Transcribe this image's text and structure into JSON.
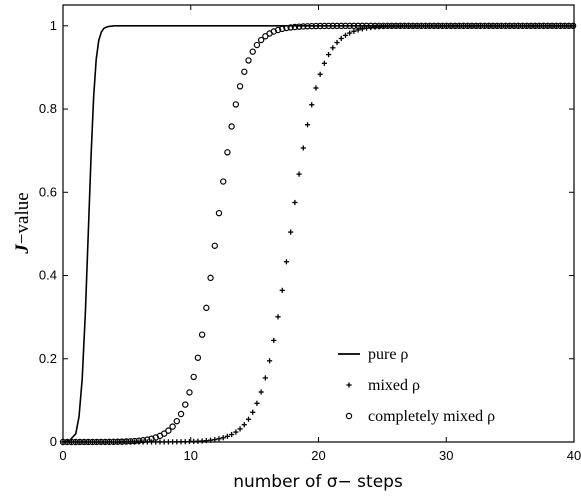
{
  "chart_data": {
    "type": "line",
    "title": "",
    "xlabel": "number of σ− steps",
    "ylabel_italic_part": "J",
    "ylabel_rest": "−value",
    "xlim": [
      0,
      40
    ],
    "ylim": [
      0,
      1.05
    ],
    "xticks": [
      0,
      10,
      20,
      30,
      40
    ],
    "yticks": [
      0,
      0.2,
      0.4,
      0.6,
      0.8,
      1
    ],
    "xtick_labels": [
      "0",
      "10",
      "20",
      "30",
      "40"
    ],
    "ytick_labels": [
      "0",
      "0.2",
      "0.4",
      "0.6",
      "0.8",
      "1"
    ],
    "grid": false,
    "legend_position": "bottom-right",
    "series": [
      {
        "name": "pure ρ",
        "marker": "line",
        "color": "#000000",
        "x": [
          0,
          0.5,
          1.0,
          1.25,
          1.5,
          1.75,
          2.0,
          2.2,
          2.4,
          2.6,
          2.8,
          3.0,
          3.2,
          3.5,
          4.0,
          5.0,
          10,
          20,
          30,
          40
        ],
        "y": [
          0,
          0.003,
          0.02,
          0.06,
          0.15,
          0.31,
          0.52,
          0.69,
          0.83,
          0.92,
          0.965,
          0.985,
          0.994,
          0.998,
          1.0,
          1.0,
          1.0,
          1.0,
          1.0,
          1.0
        ]
      },
      {
        "name": "mixed ρ",
        "marker": "plus",
        "color": "#000000",
        "logistic": {
          "x_mid": 17.8,
          "scale": 1.15,
          "x_start": 0,
          "x_end": 40,
          "step": 0.33
        }
      },
      {
        "name": "completely mixed ρ",
        "marker": "circle",
        "color": "#000000",
        "logistic": {
          "x_mid": 12.0,
          "scale": 1.05,
          "x_start": 0,
          "x_end": 40,
          "step": 0.33
        }
      }
    ]
  }
}
